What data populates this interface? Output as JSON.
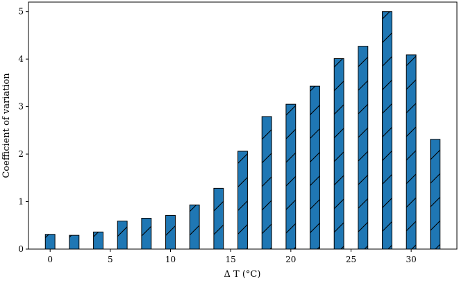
{
  "chart_data": {
    "type": "bar",
    "title": "",
    "xlabel": "Δ T (°C)",
    "ylabel": "Coefficient of variation",
    "x": [
      0,
      2,
      4,
      6,
      8,
      10,
      12,
      14,
      16,
      18,
      20,
      22,
      24,
      26,
      28,
      30,
      32
    ],
    "values": [
      0.31,
      0.29,
      0.36,
      0.59,
      0.65,
      0.71,
      0.93,
      1.28,
      2.06,
      2.79,
      3.05,
      3.43,
      4.01,
      4.27,
      5.0,
      4.09,
      2.31
    ],
    "xlim": [
      -1.8,
      33.8
    ],
    "ylim": [
      0,
      5.2
    ],
    "xticks": [
      0,
      5,
      10,
      15,
      20,
      25,
      30
    ],
    "yticks": [
      0,
      1,
      2,
      3,
      4,
      5
    ],
    "bar_width": 0.8,
    "grid": false,
    "legend": "none",
    "bar_color": "#1f77b4",
    "edge_color": "#000000",
    "hatch": "/"
  }
}
